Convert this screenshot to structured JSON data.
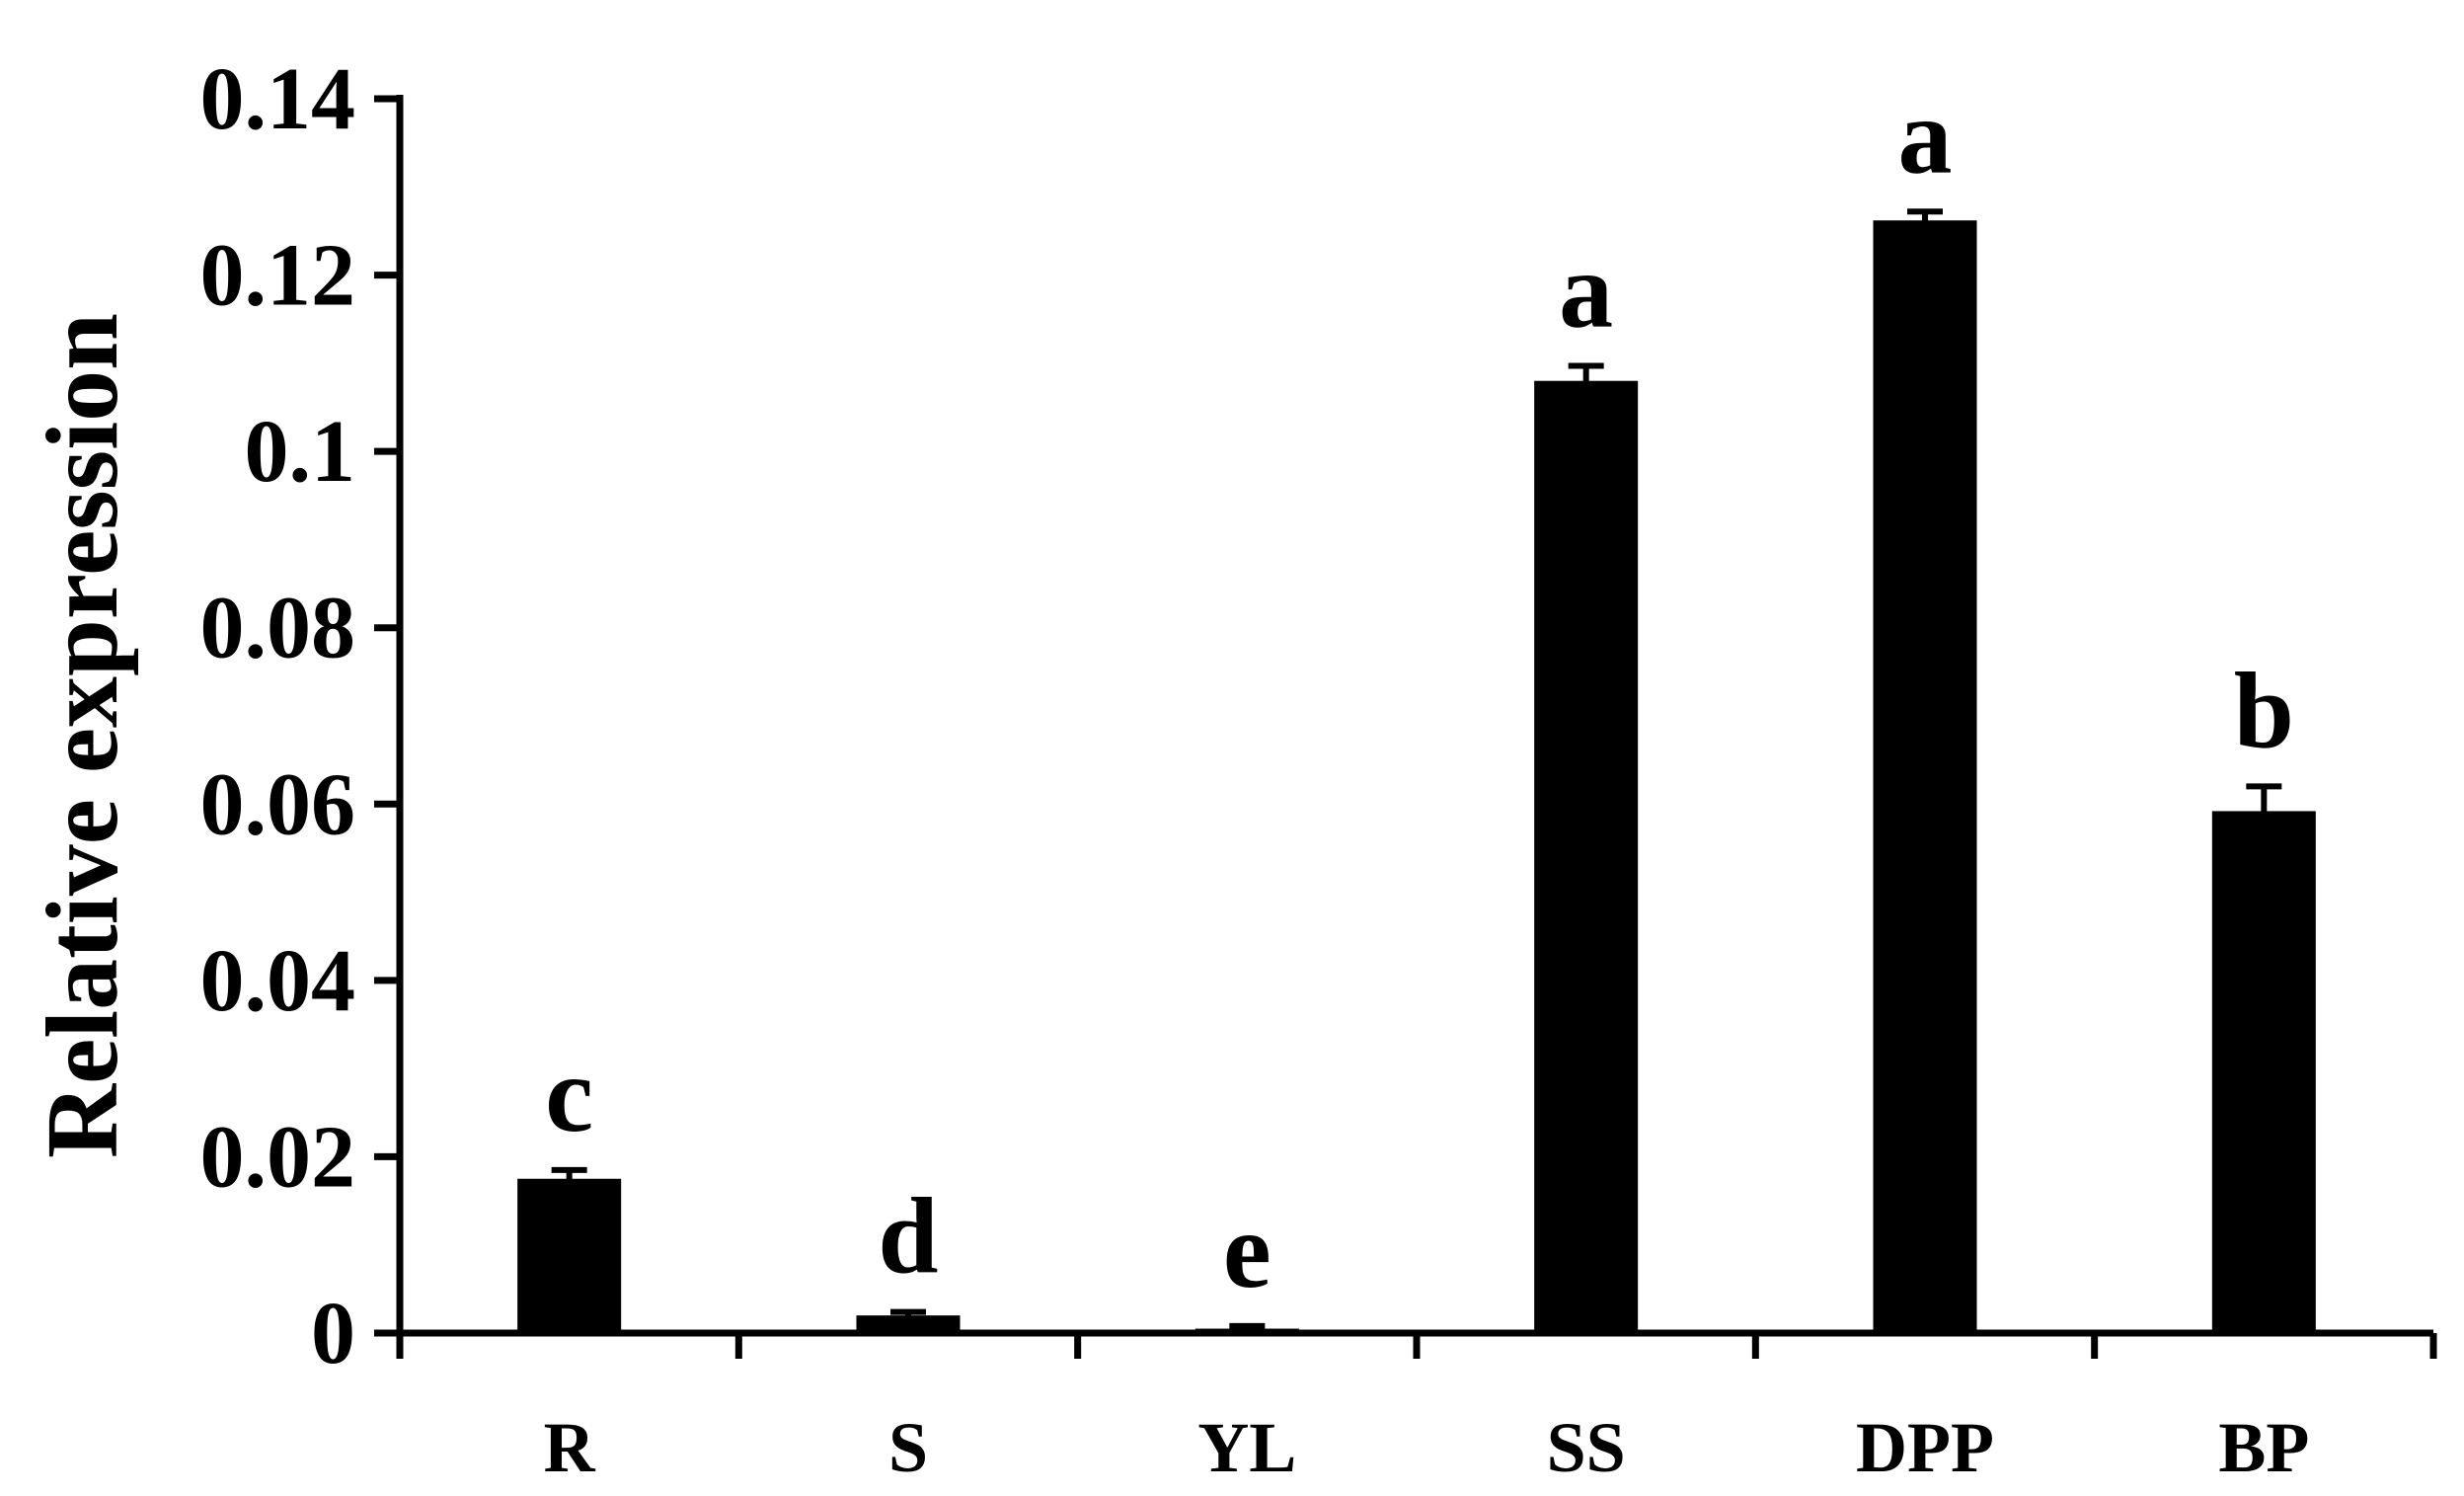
{
  "chart_data": {
    "type": "bar",
    "title": "",
    "xlabel": "",
    "ylabel": "Relative expression",
    "categories": [
      "R",
      "S",
      "YL",
      "SS",
      "DPP",
      "BP"
    ],
    "values": [
      0.0175,
      0.002,
      0.0005,
      0.108,
      0.1262,
      0.0592
    ],
    "errors": [
      0.001,
      0.0004,
      0.0003,
      0.0017,
      0.001,
      0.0028
    ],
    "significance": [
      "c",
      "d",
      "e",
      "a",
      "a",
      "b"
    ],
    "ylim": [
      0,
      0.14
    ],
    "yticks": [
      0,
      0.02,
      0.04,
      0.06,
      0.08,
      0.1,
      0.12,
      0.14
    ],
    "ytick_labels": [
      "0",
      "0.02",
      "0.04",
      "0.06",
      "0.08",
      "0.1",
      "0.12",
      "0.14"
    ],
    "bar_color": "#000000",
    "grid": false,
    "legend": "none"
  }
}
